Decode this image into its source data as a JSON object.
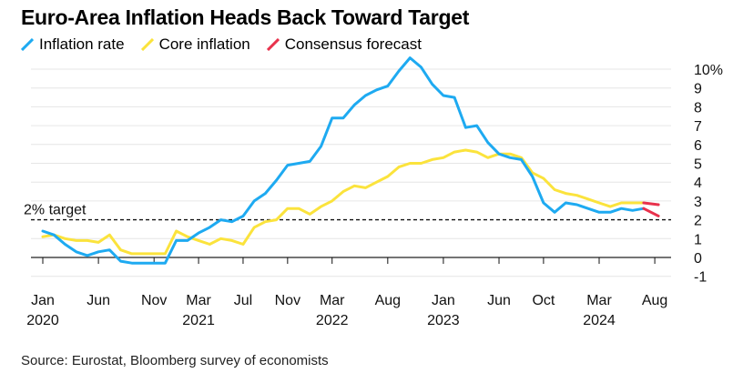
{
  "title": "Euro-Area Inflation Heads Back Toward Target",
  "source": "Source: Eurostat, Bloomberg survey of economists",
  "colors": {
    "inflation": "#1eaaf1",
    "core": "#fbe33c",
    "forecast": "#e8324c",
    "grid": "#e6e6e6",
    "axis": "#000000"
  },
  "chart_data": {
    "type": "line",
    "title": "Euro-Area Inflation Heads Back Toward Target",
    "x_start": "2020-01",
    "x_labels": [
      {
        "month_index": 0,
        "label": "Jan",
        "sublabel": "2020"
      },
      {
        "month_index": 5,
        "label": "Jun",
        "sublabel": ""
      },
      {
        "month_index": 10,
        "label": "Nov",
        "sublabel": ""
      },
      {
        "month_index": 14,
        "label": "Mar",
        "sublabel": "2021"
      },
      {
        "month_index": 18,
        "label": "Jul",
        "sublabel": ""
      },
      {
        "month_index": 22,
        "label": "Nov",
        "sublabel": ""
      },
      {
        "month_index": 26,
        "label": "Mar",
        "sublabel": "2022"
      },
      {
        "month_index": 31,
        "label": "Aug",
        "sublabel": ""
      },
      {
        "month_index": 36,
        "label": "Jan",
        "sublabel": "2023"
      },
      {
        "month_index": 41,
        "label": "Jun",
        "sublabel": ""
      },
      {
        "month_index": 45,
        "label": "Oct",
        "sublabel": ""
      },
      {
        "month_index": 50,
        "label": "Mar",
        "sublabel": "2024"
      },
      {
        "month_index": 55,
        "label": "Aug",
        "sublabel": ""
      }
    ],
    "y_ticks": [
      {
        "value": 10,
        "label": "10%"
      },
      {
        "value": 9,
        "label": "9"
      },
      {
        "value": 8,
        "label": "8"
      },
      {
        "value": 7,
        "label": "7"
      },
      {
        "value": 6,
        "label": "6"
      },
      {
        "value": 5,
        "label": "5"
      },
      {
        "value": 4,
        "label": "4"
      },
      {
        "value": 3,
        "label": "3"
      },
      {
        "value": 2,
        "label": "2"
      },
      {
        "value": 1,
        "label": "1"
      },
      {
        "value": 0,
        "label": "0"
      },
      {
        "value": -1,
        "label": "-1"
      }
    ],
    "ylim": [
      -1,
      10.6
    ],
    "target": {
      "value": 2,
      "label": "2% target"
    },
    "series": [
      {
        "name": "Inflation rate",
        "key": "inflation",
        "values": [
          1.4,
          1.2,
          0.7,
          0.3,
          0.1,
          0.3,
          0.4,
          -0.2,
          -0.3,
          -0.3,
          -0.3,
          -0.3,
          0.9,
          0.9,
          1.3,
          1.6,
          2.0,
          1.9,
          2.2,
          3.0,
          3.4,
          4.1,
          4.9,
          5.0,
          5.1,
          5.9,
          7.4,
          7.4,
          8.1,
          8.6,
          8.9,
          9.1,
          9.9,
          10.6,
          10.1,
          9.2,
          8.6,
          8.5,
          6.9,
          7.0,
          6.1,
          5.5,
          5.3,
          5.2,
          4.3,
          2.9,
          2.4,
          2.9,
          2.8,
          2.6,
          2.4,
          2.4,
          2.6,
          2.5,
          2.6
        ]
      },
      {
        "name": "Core inflation",
        "key": "core",
        "values": [
          1.1,
          1.2,
          1.0,
          0.9,
          0.9,
          0.8,
          1.2,
          0.4,
          0.2,
          0.2,
          0.2,
          0.2,
          1.4,
          1.1,
          0.9,
          0.7,
          1.0,
          0.9,
          0.7,
          1.6,
          1.9,
          2.0,
          2.6,
          2.6,
          2.3,
          2.7,
          3.0,
          3.5,
          3.8,
          3.7,
          4.0,
          4.3,
          4.8,
          5.0,
          5.0,
          5.2,
          5.3,
          5.6,
          5.7,
          5.6,
          5.3,
          5.5,
          5.5,
          5.3,
          4.5,
          4.2,
          3.6,
          3.4,
          3.3,
          3.1,
          2.9,
          2.7,
          2.9,
          2.9,
          2.9
        ]
      },
      {
        "name": "Consensus forecast",
        "key": "forecast",
        "segments": [
          {
            "from": [
              54,
              2.6
            ],
            "to": [
              55,
              2.2
            ]
          },
          {
            "from": [
              54,
              2.9
            ],
            "to": [
              55,
              2.8
            ]
          }
        ]
      }
    ]
  }
}
